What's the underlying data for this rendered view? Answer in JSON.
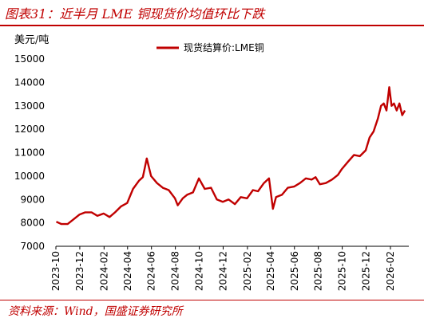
{
  "header": {
    "title": "图表31：近半月 LME 铜现货价均值环比下跌",
    "unit": "美元/吨"
  },
  "footer": {
    "source": "资料来源：Wind，国盛证券研究所"
  },
  "colors": {
    "accent": "#c00000",
    "series": "#c00000"
  },
  "chart_data": {
    "type": "line",
    "title": "图表31：近半月 LME 铜现货价均值环比下跌",
    "ylabel": "美元/吨",
    "xlabel": "",
    "ylim": [
      7000,
      15000
    ],
    "yticks": [
      7000,
      8000,
      9000,
      10000,
      11000,
      12000,
      13000,
      14000,
      15000
    ],
    "xlim": [
      "2023-10-01",
      "2026-03-20"
    ],
    "xticks": [
      "2023-10",
      "2023-12",
      "2024-02",
      "2024-04",
      "2024-06",
      "2024-08",
      "2024-10",
      "2024-12",
      "2025-02",
      "2025-04",
      "2025-06",
      "2025-08",
      "2025-10",
      "2025-12",
      "2026-02"
    ],
    "legend_position": "top-center",
    "grid": false,
    "series": [
      {
        "name": "现货结算价:LME铜",
        "points": [
          [
            "2023-10-02",
            8050
          ],
          [
            "2023-10-15",
            7950
          ],
          [
            "2023-10-31",
            7950
          ],
          [
            "2023-11-15",
            8150
          ],
          [
            "2023-11-30",
            8350
          ],
          [
            "2023-12-15",
            8450
          ],
          [
            "2023-12-31",
            8450
          ],
          [
            "2024-01-15",
            8300
          ],
          [
            "2024-01-31",
            8400
          ],
          [
            "2024-02-15",
            8250
          ],
          [
            "2024-02-29",
            8450
          ],
          [
            "2024-03-15",
            8700
          ],
          [
            "2024-03-31",
            8850
          ],
          [
            "2024-04-15",
            9450
          ],
          [
            "2024-04-30",
            9800
          ],
          [
            "2024-05-10",
            9950
          ],
          [
            "2024-05-20",
            10750
          ],
          [
            "2024-05-31",
            10000
          ],
          [
            "2024-06-15",
            9700
          ],
          [
            "2024-06-30",
            9500
          ],
          [
            "2024-07-15",
            9400
          ],
          [
            "2024-07-31",
            9050
          ],
          [
            "2024-08-07",
            8750
          ],
          [
            "2024-08-20",
            9050
          ],
          [
            "2024-08-31",
            9200
          ],
          [
            "2024-09-15",
            9300
          ],
          [
            "2024-09-30",
            9900
          ],
          [
            "2024-10-15",
            9450
          ],
          [
            "2024-10-31",
            9500
          ],
          [
            "2024-11-15",
            9000
          ],
          [
            "2024-11-30",
            8900
          ],
          [
            "2024-12-15",
            9000
          ],
          [
            "2024-12-31",
            8800
          ],
          [
            "2025-01-15",
            9100
          ],
          [
            "2025-01-31",
            9050
          ],
          [
            "2025-02-15",
            9400
          ],
          [
            "2025-02-28",
            9350
          ],
          [
            "2025-03-15",
            9700
          ],
          [
            "2025-03-28",
            9900
          ],
          [
            "2025-04-07",
            8600
          ],
          [
            "2025-04-15",
            9100
          ],
          [
            "2025-04-30",
            9200
          ],
          [
            "2025-05-15",
            9500
          ],
          [
            "2025-05-31",
            9550
          ],
          [
            "2025-06-15",
            9700
          ],
          [
            "2025-06-30",
            9900
          ],
          [
            "2025-07-15",
            9850
          ],
          [
            "2025-07-25",
            9950
          ],
          [
            "2025-08-05",
            9650
          ],
          [
            "2025-08-20",
            9700
          ],
          [
            "2025-09-05",
            9850
          ],
          [
            "2025-09-20",
            10050
          ],
          [
            "2025-09-30",
            10300
          ],
          [
            "2025-10-15",
            10600
          ],
          [
            "2025-10-31",
            10900
          ],
          [
            "2025-11-15",
            10850
          ],
          [
            "2025-11-30",
            11100
          ],
          [
            "2025-12-10",
            11650
          ],
          [
            "2025-12-20",
            11900
          ],
          [
            "2025-12-31",
            12450
          ],
          [
            "2026-01-08",
            13000
          ],
          [
            "2026-01-15",
            13100
          ],
          [
            "2026-01-22",
            12800
          ],
          [
            "2026-01-29",
            13800
          ],
          [
            "2026-02-04",
            13000
          ],
          [
            "2026-02-10",
            13100
          ],
          [
            "2026-02-17",
            12800
          ],
          [
            "2026-02-24",
            13100
          ],
          [
            "2026-03-03",
            12600
          ],
          [
            "2026-03-10",
            12800
          ]
        ]
      }
    ]
  }
}
